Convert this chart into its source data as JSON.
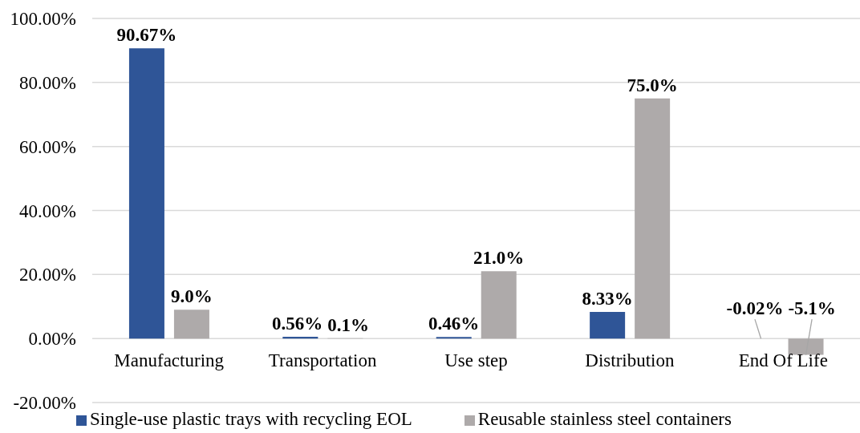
{
  "chart_data": {
    "type": "bar",
    "categories": [
      "Manufacturing",
      "Transportation",
      "Use step",
      "Distribution",
      "End Of Life"
    ],
    "series": [
      {
        "name": "Single-use plastic trays with recycling EOL",
        "color": "#2f5597",
        "values": [
          90.67,
          0.56,
          0.46,
          8.33,
          -0.02
        ],
        "value_labels": [
          "90.67%",
          "0.56%",
          "0.46%",
          "8.33%",
          "-0.02%"
        ]
      },
      {
        "name": "Reusable stainless steel containers",
        "color": "#aeaaaa",
        "values": [
          9.0,
          0.1,
          21.0,
          75.0,
          -5.1
        ],
        "value_labels": [
          "9.0%",
          "0.1%",
          "21.0%",
          "75.0%",
          "-5.1%"
        ]
      }
    ],
    "ylim": [
      -20,
      100
    ],
    "yticks": [
      {
        "value": -20,
        "label": "-20.00%"
      },
      {
        "value": 0,
        "label": "0.00%"
      },
      {
        "value": 20,
        "label": "20.00%"
      },
      {
        "value": 40,
        "label": "40.00%"
      },
      {
        "value": 60,
        "label": "60.00%"
      },
      {
        "value": 80,
        "label": "80.00%"
      },
      {
        "value": 100,
        "label": "100.00%"
      }
    ],
    "grid": "y",
    "legend": "bottom"
  }
}
